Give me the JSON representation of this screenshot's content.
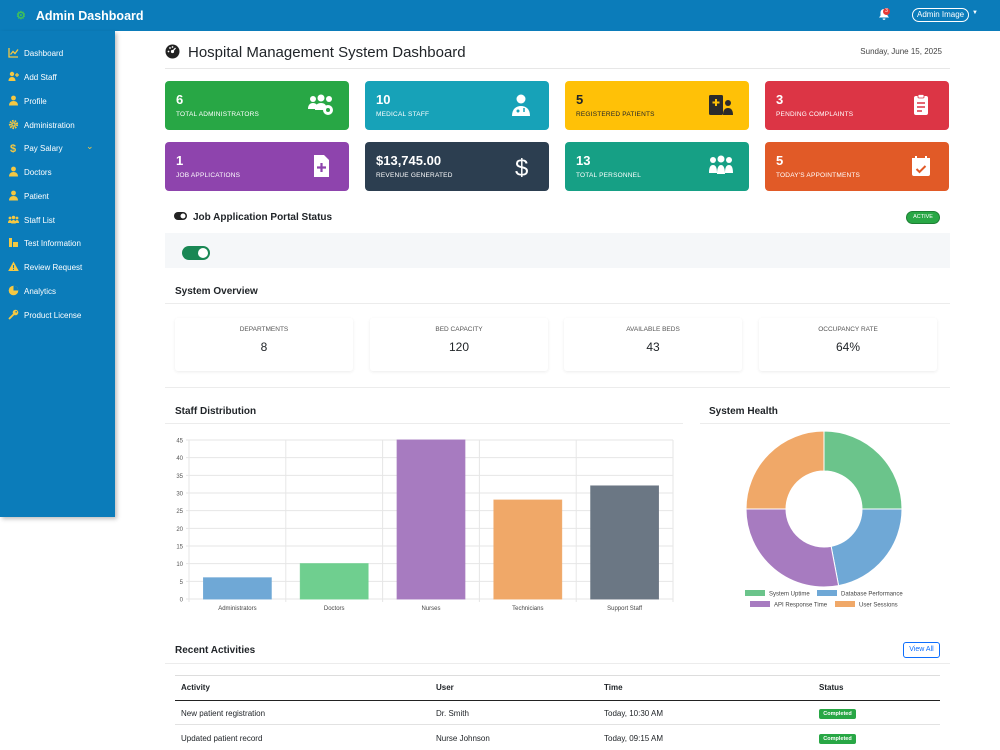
{
  "topbar": {
    "title": "Admin Dashboard",
    "notif_count": "3",
    "user_label": "Admin Image"
  },
  "sidebar": {
    "items": [
      {
        "label": "Dashboard",
        "icon": "chart-line-icon"
      },
      {
        "label": "Add Staff",
        "icon": "user-plus-icon"
      },
      {
        "label": "Profile",
        "icon": "user-icon"
      },
      {
        "label": "Administration",
        "icon": "gear-icon"
      },
      {
        "label": "Pay Salary",
        "icon": "dollar-icon"
      },
      {
        "label": "Doctors",
        "icon": "doctor-icon"
      },
      {
        "label": "Patient",
        "icon": "patient-icon"
      },
      {
        "label": "Staff List",
        "icon": "users-icon"
      },
      {
        "label": "Test Information",
        "icon": "flask-icon"
      },
      {
        "label": "Review Request",
        "icon": "warning-icon"
      },
      {
        "label": "Analytics",
        "icon": "pie-icon"
      },
      {
        "label": "Product License",
        "icon": "key-icon"
      }
    ]
  },
  "page": {
    "title": "Hospital Management System Dashboard",
    "date": "Sunday, June 15, 2025"
  },
  "cards": [
    {
      "value": "6",
      "label": "Total Administrators",
      "color": "#28a745",
      "icon": "users-cog-icon"
    },
    {
      "value": "10",
      "label": "Medical Staff",
      "color": "#17a2b8",
      "icon": "user-doctor-icon"
    },
    {
      "value": "5",
      "label": "Registered Patients",
      "color": "#ffc107",
      "icon": "hospital-user-icon"
    },
    {
      "value": "3",
      "label": "Pending Complaints",
      "color": "#dc3545",
      "icon": "clipboard-icon"
    },
    {
      "value": "1",
      "label": "Job Applications",
      "color": "#8e44ad",
      "icon": "file-medical-icon"
    },
    {
      "value": "$13,745.00",
      "label": "Revenue Generated",
      "color": "#2c3e50",
      "icon": "dollar-icon"
    },
    {
      "value": "13",
      "label": "Total Personnel",
      "color": "#16a085",
      "icon": "people-group-icon"
    },
    {
      "value": "5",
      "label": "Today's Appointments",
      "color": "#e15a27",
      "icon": "calendar-check-icon"
    }
  ],
  "portal": {
    "title": "Job Application Portal Status",
    "status": "ACTIVE"
  },
  "overview": {
    "title": "System Overview",
    "stats": [
      {
        "label": "Departments",
        "value": "8"
      },
      {
        "label": "Bed Capacity",
        "value": "120"
      },
      {
        "label": "Available Beds",
        "value": "43"
      },
      {
        "label": "Occupancy Rate",
        "value": "64%"
      }
    ]
  },
  "staff_chart": {
    "title": "Staff Distribution"
  },
  "health_chart": {
    "title": "System Health"
  },
  "chart_data": [
    {
      "type": "bar",
      "title": "Staff Distribution",
      "categories": [
        "Administrators",
        "Doctors",
        "Nurses",
        "Technicians",
        "Support Staff"
      ],
      "values": [
        6,
        10,
        45,
        28,
        32
      ],
      "colors": [
        "#6fa8d6",
        "#6fcf8f",
        "#a77bc0",
        "#f0a868",
        "#6b7784"
      ],
      "yticks": [
        0,
        5,
        10,
        15,
        20,
        25,
        30,
        35,
        40,
        45
      ],
      "ylim": [
        0,
        45
      ],
      "grid": true
    },
    {
      "type": "pie",
      "title": "System Health",
      "labels": [
        "System Uptime",
        "Database Performance",
        "API Response Time",
        "User Sessions"
      ],
      "values": [
        25,
        22,
        28,
        25
      ],
      "colors": [
        "#6bc48b",
        "#6fa8d6",
        "#a77bc0",
        "#f0a868"
      ],
      "legend": "bottom"
    }
  ],
  "activities": {
    "title": "Recent Activities",
    "view_all": "View All",
    "headers": [
      "Activity",
      "User",
      "Time",
      "Status"
    ],
    "rows": [
      {
        "activity": "New patient registration",
        "user": "Dr. Smith",
        "time": "Today, 10:30 AM",
        "status": "Completed"
      },
      {
        "activity": "Updated patient record",
        "user": "Nurse Johnson",
        "time": "Today, 09:15 AM",
        "status": "Completed"
      }
    ]
  }
}
